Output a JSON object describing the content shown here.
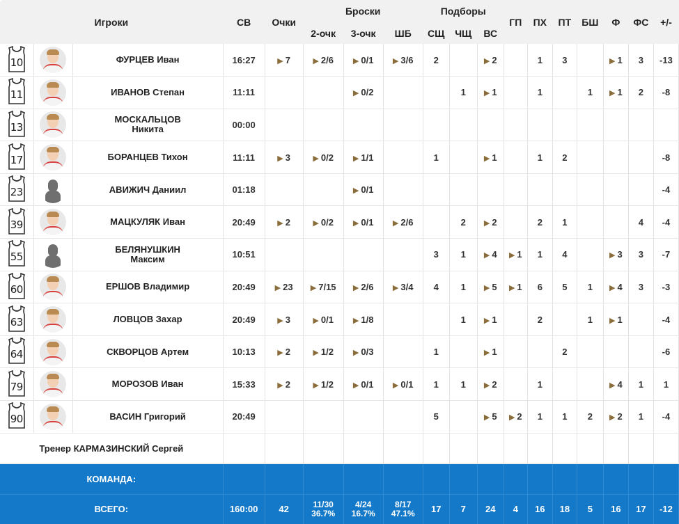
{
  "header": {
    "players": "Игроки",
    "minutes": "СВ",
    "points": "Очки",
    "shots_group": "Броски",
    "two_pt": "2-очк",
    "three_pt": "3-очк",
    "free_throws": "ШБ",
    "rebounds_group": "Подборы",
    "def_reb": "СЩ",
    "off_reb": "ЧЩ",
    "total_reb": "ВС",
    "assists": "ГП",
    "turnovers": "ПХ",
    "steals": "ПТ",
    "blocks": "БШ",
    "fouls": "Ф",
    "fouls_drawn": "ФС",
    "plus_minus": "+/-"
  },
  "players": [
    {
      "number": "10",
      "name_line1": "ФУРЦЕВ Иван",
      "name_line2": "",
      "photo": "photo",
      "min": "16:27",
      "pts": "7",
      "two": "2/6",
      "three": "0/1",
      "ft": "3/6",
      "dreb": "2",
      "oreb": "",
      "reb": "2",
      "ast": "",
      "to": "1",
      "stl": "3",
      "blk": "",
      "pf": "1",
      "fd": "3",
      "pm": "-13"
    },
    {
      "number": "11",
      "name_line1": "ИВАНОВ Степан",
      "name_line2": "",
      "photo": "photo",
      "min": "11:11",
      "pts": "",
      "two": "",
      "three": "0/2",
      "ft": "",
      "dreb": "",
      "oreb": "1",
      "reb": "1",
      "ast": "",
      "to": "1",
      "stl": "",
      "blk": "1",
      "pf": "1",
      "fd": "2",
      "pm": "-8"
    },
    {
      "number": "13",
      "name_line1": "МОСКАЛЬЦОВ",
      "name_line2": "Никита",
      "photo": "photo",
      "min": "00:00",
      "pts": "",
      "two": "",
      "three": "",
      "ft": "",
      "dreb": "",
      "oreb": "",
      "reb": "",
      "ast": "",
      "to": "",
      "stl": "",
      "blk": "",
      "pf": "",
      "fd": "",
      "pm": ""
    },
    {
      "number": "17",
      "name_line1": "БОРАНЦЕВ Тихон",
      "name_line2": "",
      "photo": "photo",
      "min": "11:11",
      "pts": "3",
      "two": "0/2",
      "three": "1/1",
      "ft": "",
      "dreb": "1",
      "oreb": "",
      "reb": "1",
      "ast": "",
      "to": "1",
      "stl": "2",
      "blk": "",
      "pf": "",
      "fd": "",
      "pm": "-8"
    },
    {
      "number": "23",
      "name_line1": "АВИЖИЧ Даниил",
      "name_line2": "",
      "photo": "silhouette",
      "min": "01:18",
      "pts": "",
      "two": "",
      "three": "0/1",
      "ft": "",
      "dreb": "",
      "oreb": "",
      "reb": "",
      "ast": "",
      "to": "",
      "stl": "",
      "blk": "",
      "pf": "",
      "fd": "",
      "pm": "-4"
    },
    {
      "number": "39",
      "name_line1": "МАЦКУЛЯК Иван",
      "name_line2": "",
      "photo": "photo",
      "min": "20:49",
      "pts": "2",
      "two": "0/2",
      "three": "0/1",
      "ft": "2/6",
      "dreb": "",
      "oreb": "2",
      "reb": "2",
      "ast": "",
      "to": "2",
      "stl": "1",
      "blk": "",
      "pf": "",
      "fd": "4",
      "pm": "-4"
    },
    {
      "number": "55",
      "name_line1": "БЕЛЯНУШКИН",
      "name_line2": "Максим",
      "photo": "silhouette",
      "min": "10:51",
      "pts": "",
      "two": "",
      "three": "",
      "ft": "",
      "dreb": "3",
      "oreb": "1",
      "reb": "4",
      "ast": "1",
      "to": "1",
      "stl": "4",
      "blk": "",
      "pf": "3",
      "fd": "3",
      "pm": "-7"
    },
    {
      "number": "60",
      "name_line1": "ЕРШОВ Владимир",
      "name_line2": "",
      "photo": "photo",
      "min": "20:49",
      "pts": "23",
      "two": "7/15",
      "three": "2/6",
      "ft": "3/4",
      "dreb": "4",
      "oreb": "1",
      "reb": "5",
      "ast": "1",
      "to": "6",
      "stl": "5",
      "blk": "1",
      "pf": "4",
      "fd": "3",
      "pm": "-3"
    },
    {
      "number": "63",
      "name_line1": "ЛОВЦОВ Захар",
      "name_line2": "",
      "photo": "photo",
      "min": "20:49",
      "pts": "3",
      "two": "0/1",
      "three": "1/8",
      "ft": "",
      "dreb": "",
      "oreb": "1",
      "reb": "1",
      "ast": "",
      "to": "2",
      "stl": "",
      "blk": "1",
      "pf": "1",
      "fd": "",
      "pm": "-4"
    },
    {
      "number": "64",
      "name_line1": "СКВОРЦОВ Артем",
      "name_line2": "",
      "photo": "photo",
      "min": "10:13",
      "pts": "2",
      "two": "1/2",
      "three": "0/3",
      "ft": "",
      "dreb": "1",
      "oreb": "",
      "reb": "1",
      "ast": "",
      "to": "",
      "stl": "2",
      "blk": "",
      "pf": "",
      "fd": "",
      "pm": "-6"
    },
    {
      "number": "79",
      "name_line1": "МОРОЗОВ Иван",
      "name_line2": "",
      "photo": "photo",
      "min": "15:33",
      "pts": "2",
      "two": "1/2",
      "three": "0/1",
      "ft": "0/1",
      "dreb": "1",
      "oreb": "1",
      "reb": "2",
      "ast": "",
      "to": "1",
      "stl": "",
      "blk": "",
      "pf": "4",
      "fd": "1",
      "pm": "1"
    },
    {
      "number": "90",
      "name_line1": "ВАСИН Григорий",
      "name_line2": "",
      "photo": "photo",
      "min": "20:49",
      "pts": "",
      "two": "",
      "three": "",
      "ft": "",
      "dreb": "5",
      "oreb": "",
      "reb": "5",
      "ast": "2",
      "to": "1",
      "stl": "1",
      "blk": "2",
      "pf": "2",
      "fd": "1",
      "pm": "-4"
    }
  ],
  "arrow_cols": [
    "pts",
    "two",
    "three",
    "ft",
    "reb",
    "ast",
    "pf"
  ],
  "coach": "Тренер КАРМАЗИНСКИЙ Сергей",
  "team_row": {
    "label": "КОМАНДА:"
  },
  "totals": {
    "label": "ВСЕГО:",
    "min": "160:00",
    "pts": "42",
    "two": "11/30",
    "two_pct": "36.7%",
    "three": "4/24",
    "three_pct": "16.7%",
    "ft": "8/17",
    "ft_pct": "47.1%",
    "dreb": "17",
    "oreb": "7",
    "reb": "24",
    "ast": "4",
    "to": "16",
    "stl": "18",
    "blk": "5",
    "pf": "16",
    "fd": "17",
    "pm": "-12"
  },
  "colors": {
    "accent": "#1479c8",
    "arrow": "#8a6d3b",
    "header_bg": "#f1f1f1"
  },
  "icons": {
    "jersey": "jersey-icon",
    "arrow": "play-arrow-icon"
  }
}
